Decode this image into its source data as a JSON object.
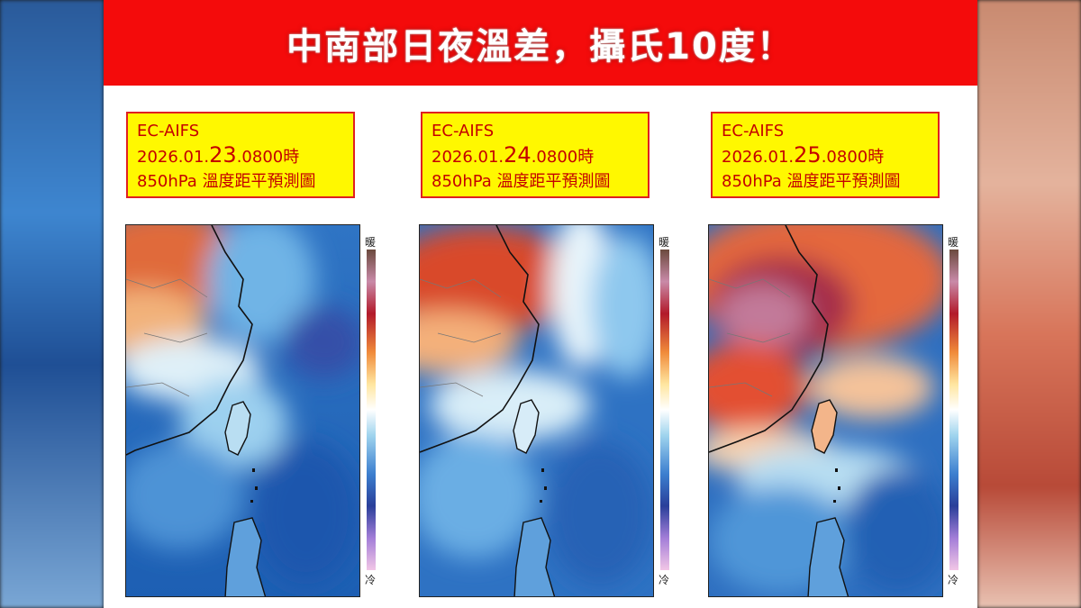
{
  "title": "中南部日夜溫差，攝氏10度！",
  "panels": [
    {
      "model": "EC-AIFS",
      "date_prefix": "2026.01.",
      "day": "23",
      "time_suffix": ".0800時",
      "subtitle": "850hPa 溫度距平預測圖"
    },
    {
      "model": "EC-AIFS",
      "date_prefix": "2026.01.",
      "day": "24",
      "time_suffix": ".0800時",
      "subtitle": "850hPa 溫度距平預測圖"
    },
    {
      "model": "EC-AIFS",
      "date_prefix": "2026.01.",
      "day": "25",
      "time_suffix": ".0800時",
      "subtitle": "850hPa 溫度距平預測圖"
    }
  ],
  "scale": {
    "warm_label": "暖",
    "cold_label": "冷"
  },
  "colors": {
    "banner": "#f40b0b",
    "label_bg": "#fff800",
    "label_text": "#c40000"
  }
}
